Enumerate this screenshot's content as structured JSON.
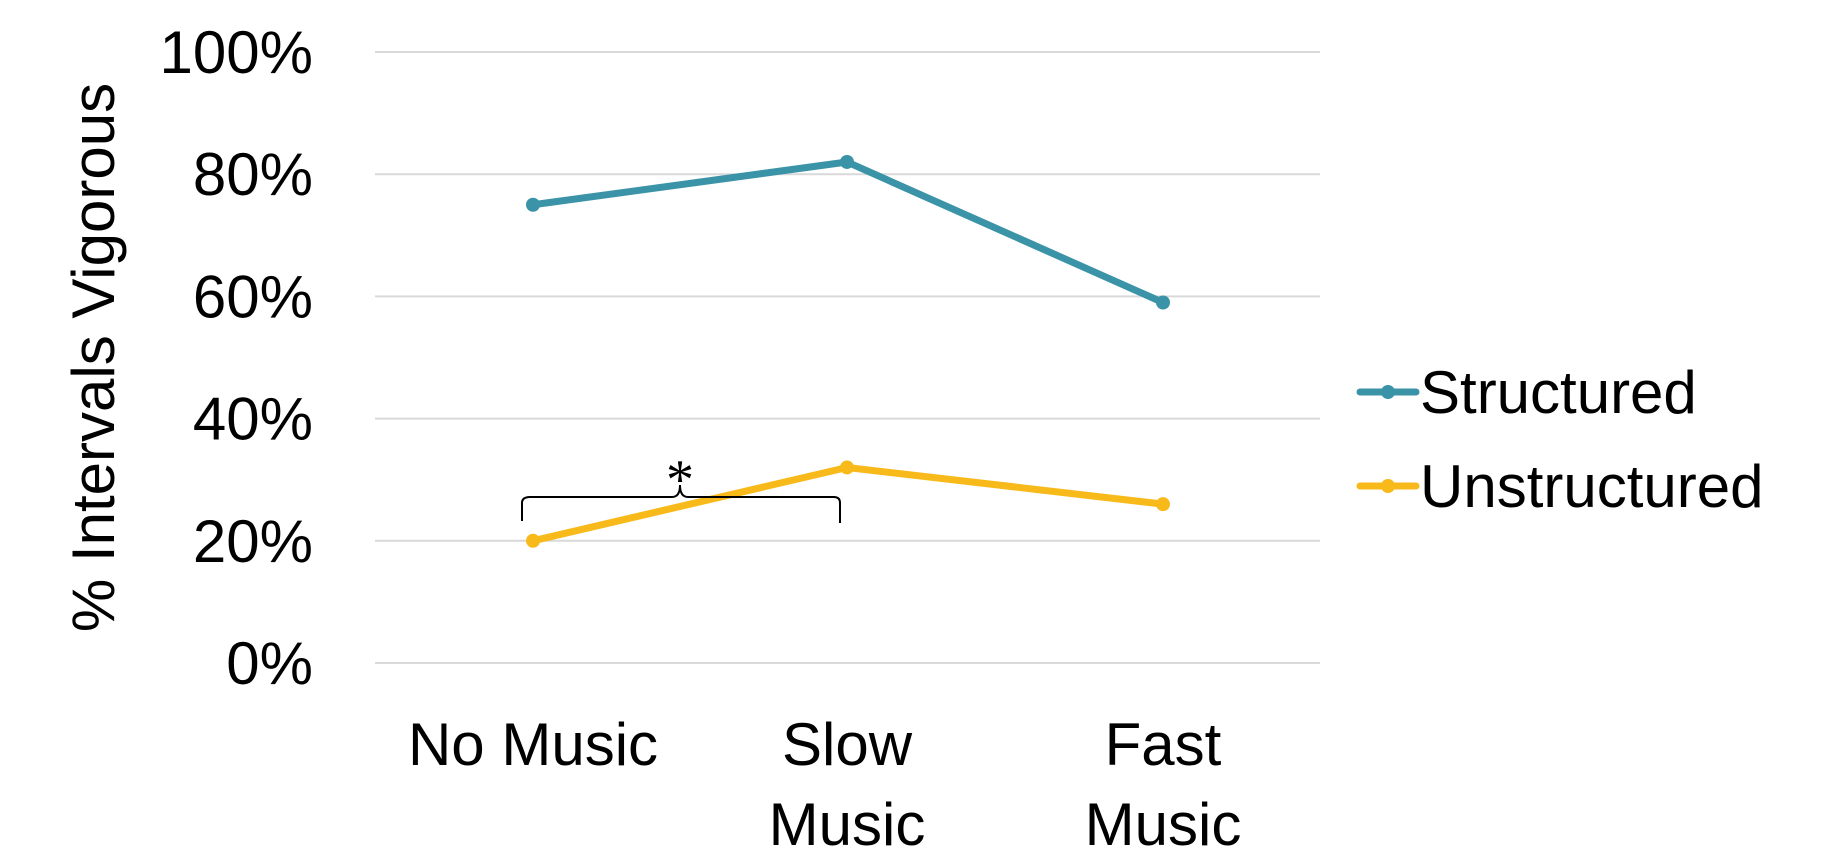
{
  "chart_data": {
    "type": "line",
    "title": "",
    "xlabel": "",
    "ylabel": "% Intervals Vigorous",
    "categories": [
      [
        "No Music"
      ],
      [
        "Slow",
        "Music"
      ],
      [
        "Fast",
        "Music"
      ]
    ],
    "ylim": [
      0,
      100
    ],
    "yticks": [
      0,
      20,
      40,
      60,
      80,
      100
    ],
    "ytick_labels": [
      "0%",
      "20%",
      "40%",
      "60%",
      "80%",
      "100%"
    ],
    "grid": true,
    "legend_position": "right",
    "series": [
      {
        "name": "Structured",
        "values": [
          75,
          82,
          59
        ],
        "color": "#3A93A6"
      },
      {
        "name": "Unstructured",
        "values": [
          20,
          32,
          26
        ],
        "color": "#F8BA1A"
      }
    ],
    "annotations": [
      {
        "text": "*",
        "type": "bracket",
        "between": [
          "No Music",
          "Slow Music"
        ]
      }
    ]
  }
}
